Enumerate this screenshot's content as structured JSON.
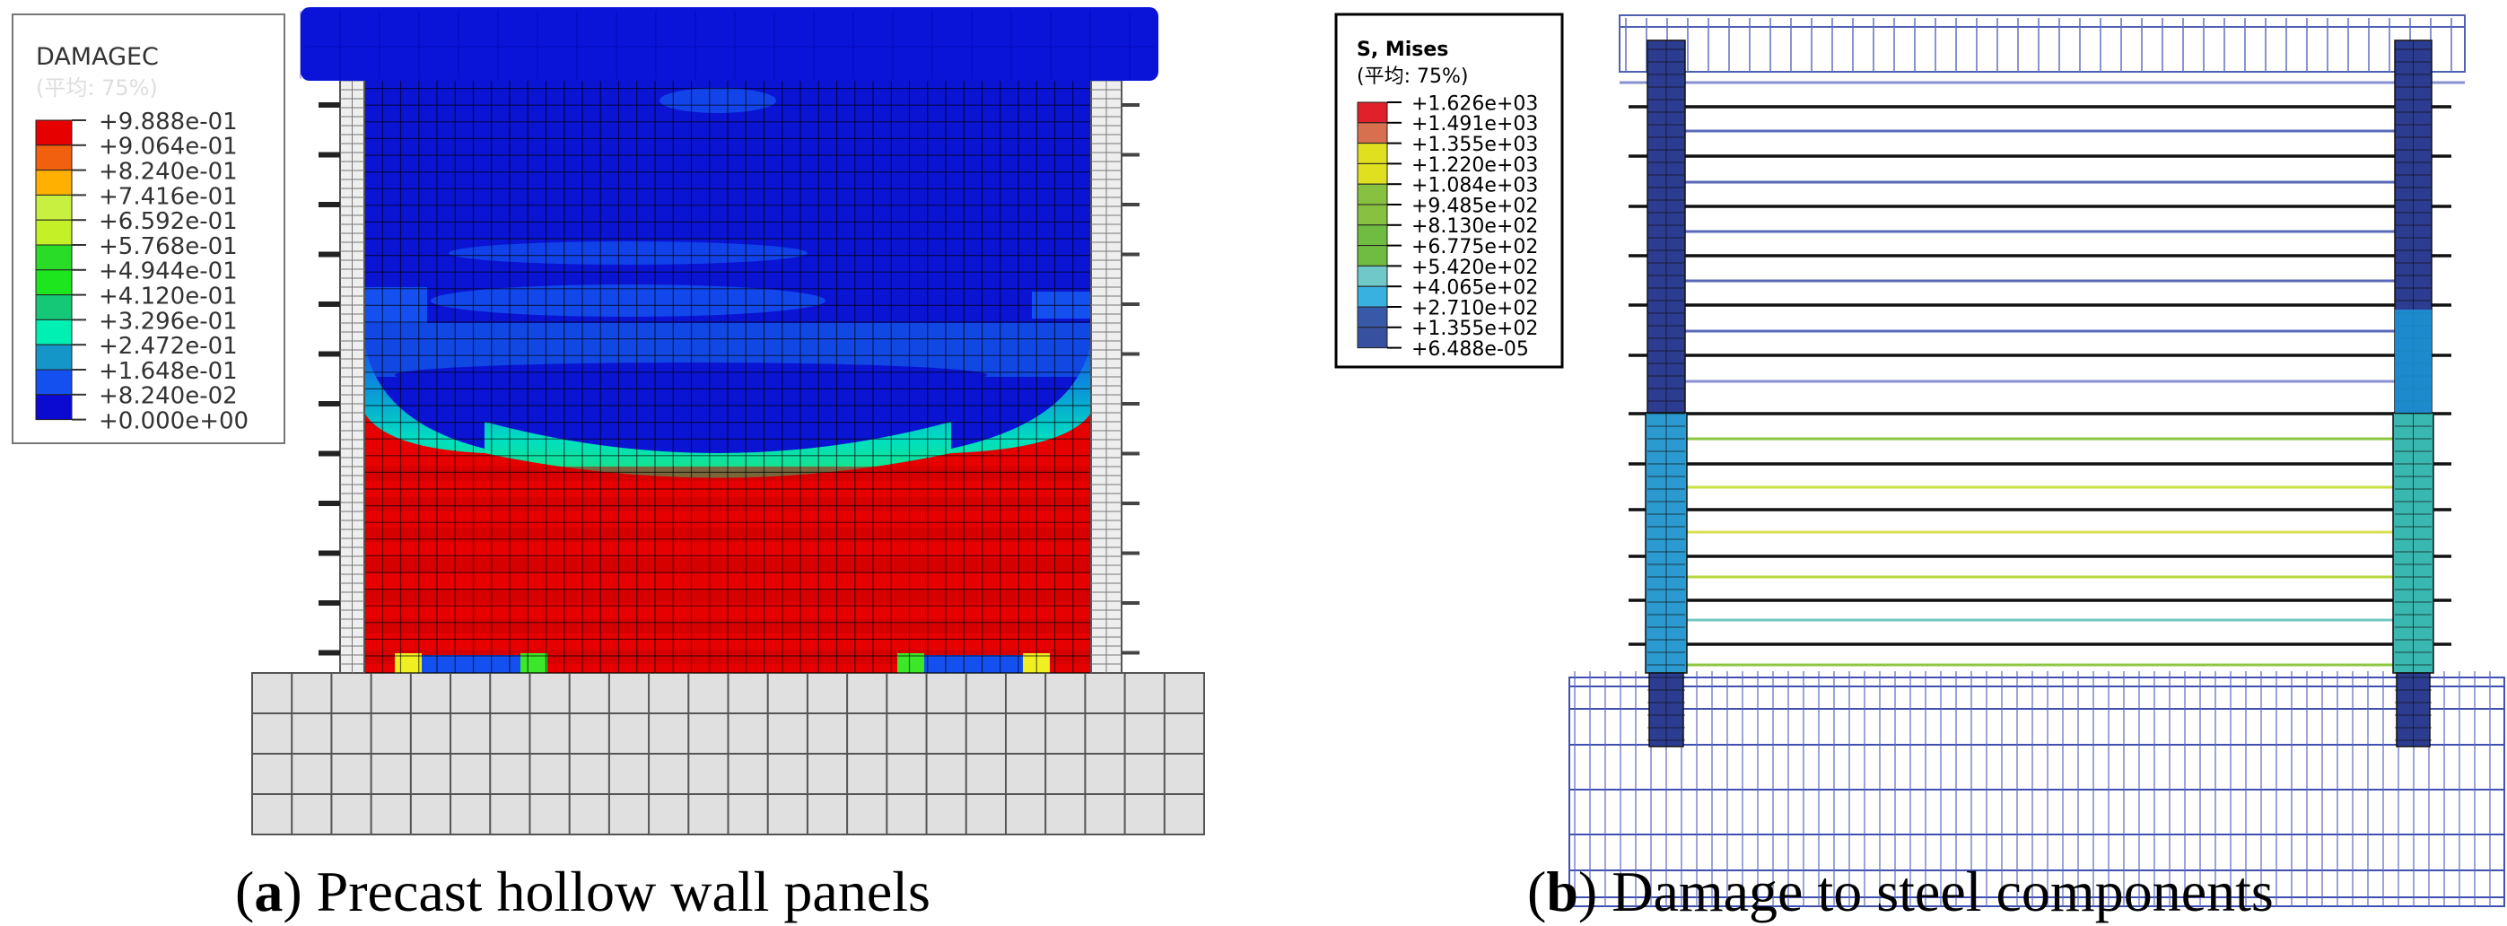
{
  "panel_a": {
    "legend": {
      "title": "DAMAGEC",
      "subtitle": "(平均: 75%)",
      "values": [
        "+9.888e-01",
        "+9.064e-01",
        "+8.240e-01",
        "+7.416e-01",
        "+6.592e-01",
        "+5.768e-01",
        "+4.944e-01",
        "+4.120e-01",
        "+3.296e-01",
        "+2.472e-01",
        "+1.648e-01",
        "+8.240e-02",
        "+0.000e+00"
      ],
      "colors": [
        "#e60000",
        "#f0600f",
        "#ffb000",
        "#c8f040",
        "#c4f028",
        "#28dc28",
        "#1ee61e",
        "#14c878",
        "#00f0b4",
        "#1496c8",
        "#1450f0",
        "#0a0ad2"
      ]
    },
    "caption": {
      "letter": "a",
      "text": "Precast hollow wall panels"
    }
  },
  "panel_b": {
    "legend": {
      "title": "S, Mises",
      "subtitle": "(平均: 75%)",
      "values": [
        "+1.626e+03",
        "+1.491e+03",
        "+1.355e+03",
        "+1.220e+03",
        "+1.084e+03",
        "+9.485e+02",
        "+8.130e+02",
        "+6.775e+02",
        "+5.420e+02",
        "+4.065e+02",
        "+2.710e+02",
        "+1.355e+02",
        "+6.488e-05"
      ],
      "colors": [
        "#e0202a",
        "#d87050",
        "#e0e020",
        "#e0e020",
        "#88c040",
        "#88c040",
        "#70bc40",
        "#70bc40",
        "#70c8c8",
        "#38b0e0",
        "#3858a8",
        "#3850a0"
      ]
    },
    "caption": {
      "letter": "b",
      "text": "Damage to steel components"
    }
  }
}
